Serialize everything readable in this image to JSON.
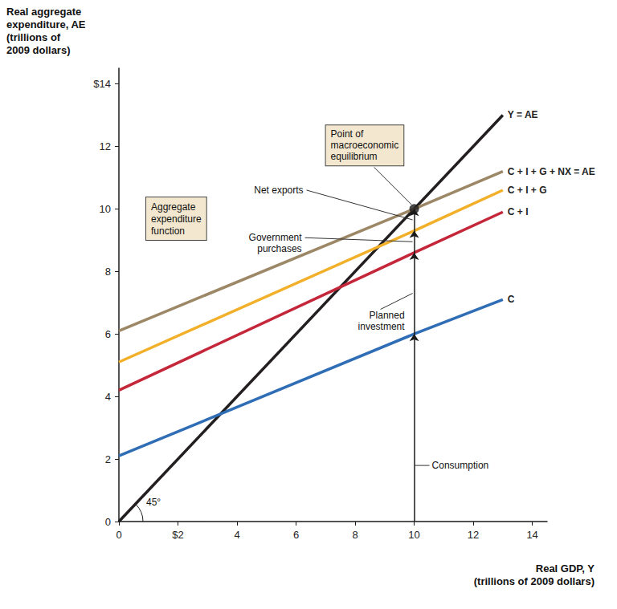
{
  "chart_data": {
    "type": "line",
    "y_label": "Real aggregate\nexpenditure, AE\n(trillions of\n2009 dollars)",
    "x_label": "Real GDP, Y\n(trillions of 2009 dollars)",
    "xlim": [
      0,
      14.5
    ],
    "xticks": [
      0,
      {
        "value": 2,
        "label": "$2"
      },
      4,
      6,
      8,
      10,
      12,
      14
    ],
    "ylim": [
      0,
      14.5
    ],
    "yticks": [
      0,
      2,
      4,
      6,
      8,
      10,
      12,
      {
        "value": 14,
        "label": "$14"
      }
    ],
    "grid": false,
    "series": [
      {
        "name": "Y = AE",
        "color": "#231f20",
        "x": [
          0,
          13
        ],
        "values": [
          0,
          13
        ]
      },
      {
        "name": "C + I + G + NX = AE",
        "color": "#9c8766",
        "x": [
          0,
          10,
          13
        ],
        "values": [
          6.1,
          10.0,
          11.2
        ]
      },
      {
        "name": "C + I + G",
        "color": "#f2b02a",
        "x": [
          0,
          10,
          13
        ],
        "values": [
          5.1,
          9.3,
          10.6
        ]
      },
      {
        "name": "C + I",
        "color": "#c4263a",
        "x": [
          0,
          10,
          13
        ],
        "values": [
          4.2,
          8.6,
          9.9
        ]
      },
      {
        "name": "C",
        "color": "#2f6db5",
        "x": [
          0,
          10,
          13
        ],
        "values": [
          2.1,
          6.0,
          7.1
        ]
      }
    ],
    "equilibrium": {
      "label": "Point of\nmacroeconomic\nequilibrium",
      "x": 10,
      "y": 10
    },
    "components": [
      {
        "label": "Consumption",
        "from": 0,
        "to": 6.0
      },
      {
        "label": "Planned\ninvestment",
        "from": 6.0,
        "to": 8.6
      },
      {
        "label": "Government\npurchases",
        "from": 8.6,
        "to": 9.3
      },
      {
        "label": "Net exports",
        "from": 9.3,
        "to": 10.0
      }
    ],
    "function_label": "Aggregate\nexpenditure\nfunction",
    "angle_label": "45°"
  }
}
